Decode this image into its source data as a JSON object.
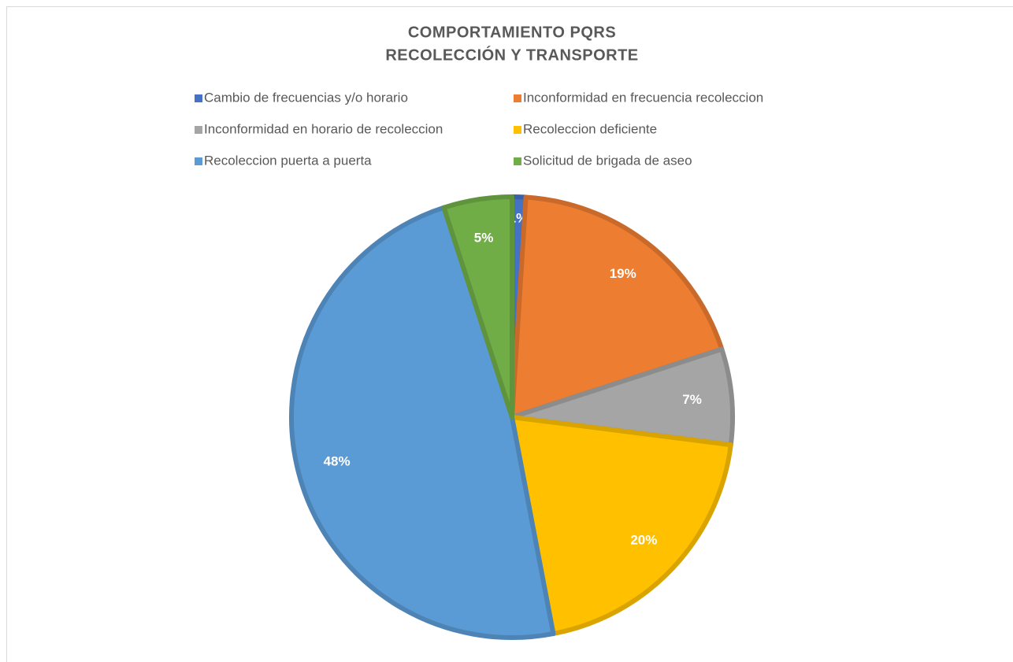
{
  "chart_data": {
    "type": "pie",
    "title": [
      "COMPORTAMIENTO PQRS",
      "RECOLECCIÓN Y TRANSPORTE"
    ],
    "categories": [
      "Cambio de frecuencias y/o horario",
      "Inconformidad en frecuencia recoleccion",
      "Inconformidad en horario de recoleccion",
      "Recoleccion deficiente",
      "Recoleccion puerta a puerta",
      "Solicitud de brigada de aseo"
    ],
    "values": [
      1,
      19,
      7,
      20,
      48,
      5
    ],
    "value_labels": [
      "1%",
      "19%",
      "7%",
      "20%",
      "48%",
      "5%"
    ],
    "colors": [
      "#4472c4",
      "#ed7d31",
      "#a5a5a5",
      "#ffc000",
      "#5b9bd5",
      "#70ad47"
    ],
    "legend": "top"
  }
}
